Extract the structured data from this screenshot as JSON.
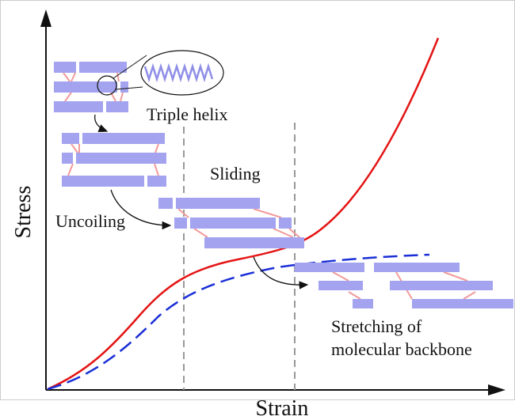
{
  "axes": {
    "y_label": "Stress",
    "x_label": "Strain"
  },
  "labels": {
    "triple_helix": "Triple helix",
    "uncoiling": "Uncoiling",
    "sliding": "Sliding",
    "stretching": [
      "Stretching of",
      "molecular backbone"
    ]
  }
}
